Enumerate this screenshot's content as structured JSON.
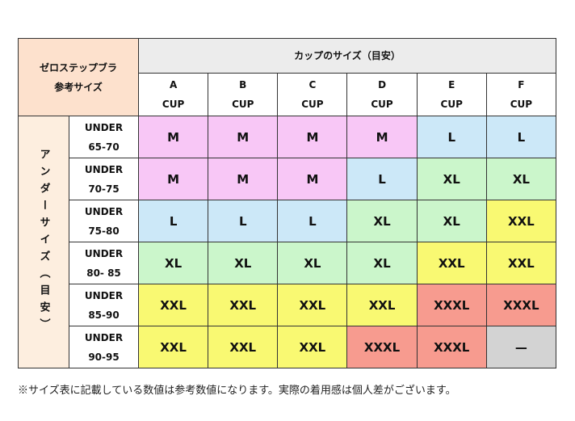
{
  "header": {
    "title_lines": [
      "ゼロステップブラ",
      "参考サイズ"
    ],
    "cup_title": "カップのサイズ（目安）",
    "under_title": "アンダーサイズ（目安）"
  },
  "cups": [
    {
      "letter": "A",
      "label": "CUP"
    },
    {
      "letter": "B",
      "label": "CUP"
    },
    {
      "letter": "C",
      "label": "CUP"
    },
    {
      "letter": "D",
      "label": "CUP"
    },
    {
      "letter": "E",
      "label": "CUP"
    },
    {
      "letter": "F",
      "label": "CUP"
    }
  ],
  "rows": [
    {
      "under": "UNDER",
      "range": "65-70",
      "sizes": [
        "M",
        "M",
        "M",
        "M",
        "L",
        "L"
      ]
    },
    {
      "under": "UNDER",
      "range": "70-75",
      "sizes": [
        "M",
        "M",
        "M",
        "L",
        "XL",
        "XL"
      ]
    },
    {
      "under": "UNDER",
      "range": "75-80",
      "sizes": [
        "L",
        "L",
        "L",
        "XL",
        "XL",
        "XXL"
      ]
    },
    {
      "under": "UNDER",
      "range": "80- 85",
      "sizes": [
        "XL",
        "XL",
        "XL",
        "XL",
        "XXL",
        "XXL"
      ]
    },
    {
      "under": "UNDER",
      "range": "85-90",
      "sizes": [
        "XXL",
        "XXL",
        "XXL",
        "XXL",
        "XXXL",
        "XXXL"
      ]
    },
    {
      "under": "UNDER",
      "range": "90-95",
      "sizes": [
        "XXL",
        "XXL",
        "XXL",
        "XXXL",
        "XXXL",
        "—"
      ]
    }
  ],
  "size_colors": {
    "M": "#f8c7f6",
    "L": "#cce8f8",
    "XL": "#cbf6cb",
    "XXL": "#f9f972",
    "XXXL": "#f79b8f",
    "—": "#d3d3d3"
  },
  "footnote": "※サイズ表に記載している数値は参考数値になります。実際の着用感は個人差がございます。"
}
